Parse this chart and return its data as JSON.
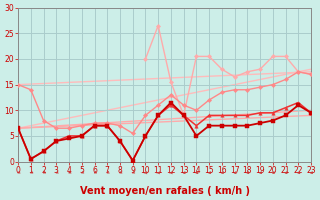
{
  "xlabel": "Vent moyen/en rafales ( km/h )",
  "bg_color": "#cceee8",
  "grid_color": "#aacccc",
  "xlim": [
    0,
    23
  ],
  "ylim": [
    0,
    30
  ],
  "yticks": [
    0,
    5,
    10,
    15,
    20,
    25,
    30
  ],
  "xticks": [
    0,
    1,
    2,
    3,
    4,
    5,
    6,
    7,
    8,
    9,
    10,
    11,
    12,
    13,
    14,
    15,
    16,
    17,
    18,
    19,
    20,
    21,
    22,
    23
  ],
  "series": [
    {
      "x": [
        0,
        1,
        2,
        3,
        4,
        5,
        6,
        7,
        8,
        9,
        10,
        11,
        12,
        13,
        14,
        15,
        16,
        17,
        18,
        19,
        20,
        21,
        22,
        23
      ],
      "y": [
        6.5,
        0.5,
        2.0,
        4.0,
        4.5,
        5.0,
        7.0,
        7.0,
        4.0,
        0.2,
        5.0,
        9.0,
        11.5,
        9.0,
        5.0,
        7.0,
        7.0,
        7.0,
        7.0,
        7.5,
        8.0,
        9.0,
        11.0,
        9.5
      ],
      "color": "#cc0000",
      "lw": 1.3,
      "marker": "s",
      "ms": 2.5,
      "zorder": 5
    },
    {
      "x": [
        0,
        1,
        2,
        3,
        4,
        5,
        6,
        7,
        8,
        9,
        10,
        11,
        12,
        13,
        14,
        15,
        16,
        17,
        18,
        19,
        20,
        21,
        22,
        23
      ],
      "y": [
        6.5,
        0.5,
        2.0,
        4.0,
        5.0,
        5.0,
        7.0,
        7.0,
        4.0,
        0.2,
        5.0,
        9.0,
        11.0,
        9.0,
        7.0,
        9.0,
        9.0,
        9.0,
        9.0,
        9.5,
        9.5,
        10.5,
        11.5,
        9.5
      ],
      "color": "#ee3333",
      "lw": 1.1,
      "marker": "^",
      "ms": 2.5,
      "zorder": 4
    },
    {
      "x": [
        0,
        1,
        2,
        3,
        4,
        5,
        6,
        7,
        8,
        9,
        10,
        11,
        12,
        13,
        14,
        15,
        16,
        17,
        18,
        19,
        20,
        21,
        22,
        23
      ],
      "y": [
        15.0,
        14.0,
        8.0,
        6.5,
        6.5,
        7.0,
        7.5,
        7.5,
        7.0,
        5.5,
        9.0,
        11.0,
        13.0,
        11.0,
        10.0,
        12.0,
        13.5,
        14.0,
        14.0,
        14.5,
        15.0,
        16.0,
        17.5,
        17.0
      ],
      "color": "#ff8888",
      "lw": 1.0,
      "marker": "D",
      "ms": 2.2,
      "zorder": 3
    },
    {
      "x": [
        10,
        11,
        12,
        13,
        14,
        15,
        16,
        17,
        18,
        19,
        20,
        21,
        22,
        23
      ],
      "y": [
        20.0,
        26.5,
        15.5,
        9.0,
        20.5,
        20.5,
        18.0,
        16.5,
        17.5,
        18.0,
        20.5,
        20.5,
        17.5,
        17.0
      ],
      "color": "#ffaaaa",
      "lw": 1.0,
      "marker": "D",
      "ms": 2.2,
      "zorder": 2
    },
    {
      "x": [
        0,
        23
      ],
      "y": [
        15.0,
        17.5
      ],
      "color": "#ffbbbb",
      "lw": 1.0,
      "marker": null,
      "ms": 0,
      "zorder": 1
    },
    {
      "x": [
        0,
        23
      ],
      "y": [
        6.5,
        18.0
      ],
      "color": "#ffbbbb",
      "lw": 1.0,
      "marker": null,
      "ms": 0,
      "zorder": 1
    },
    {
      "x": [
        0,
        23
      ],
      "y": [
        6.5,
        10.0
      ],
      "color": "#ffaaaa",
      "lw": 1.0,
      "marker": null,
      "ms": 0,
      "zorder": 1
    },
    {
      "x": [
        0,
        23
      ],
      "y": [
        6.5,
        9.0
      ],
      "color": "#ffaaaa",
      "lw": 1.0,
      "marker": null,
      "ms": 0,
      "zorder": 1
    }
  ],
  "arrow_color": "#cc3333",
  "xlabel_color": "#cc0000",
  "xlabel_fontsize": 7,
  "tick_fontsize": 5.5,
  "tick_color": "#cc0000",
  "spine_color": "#888888"
}
